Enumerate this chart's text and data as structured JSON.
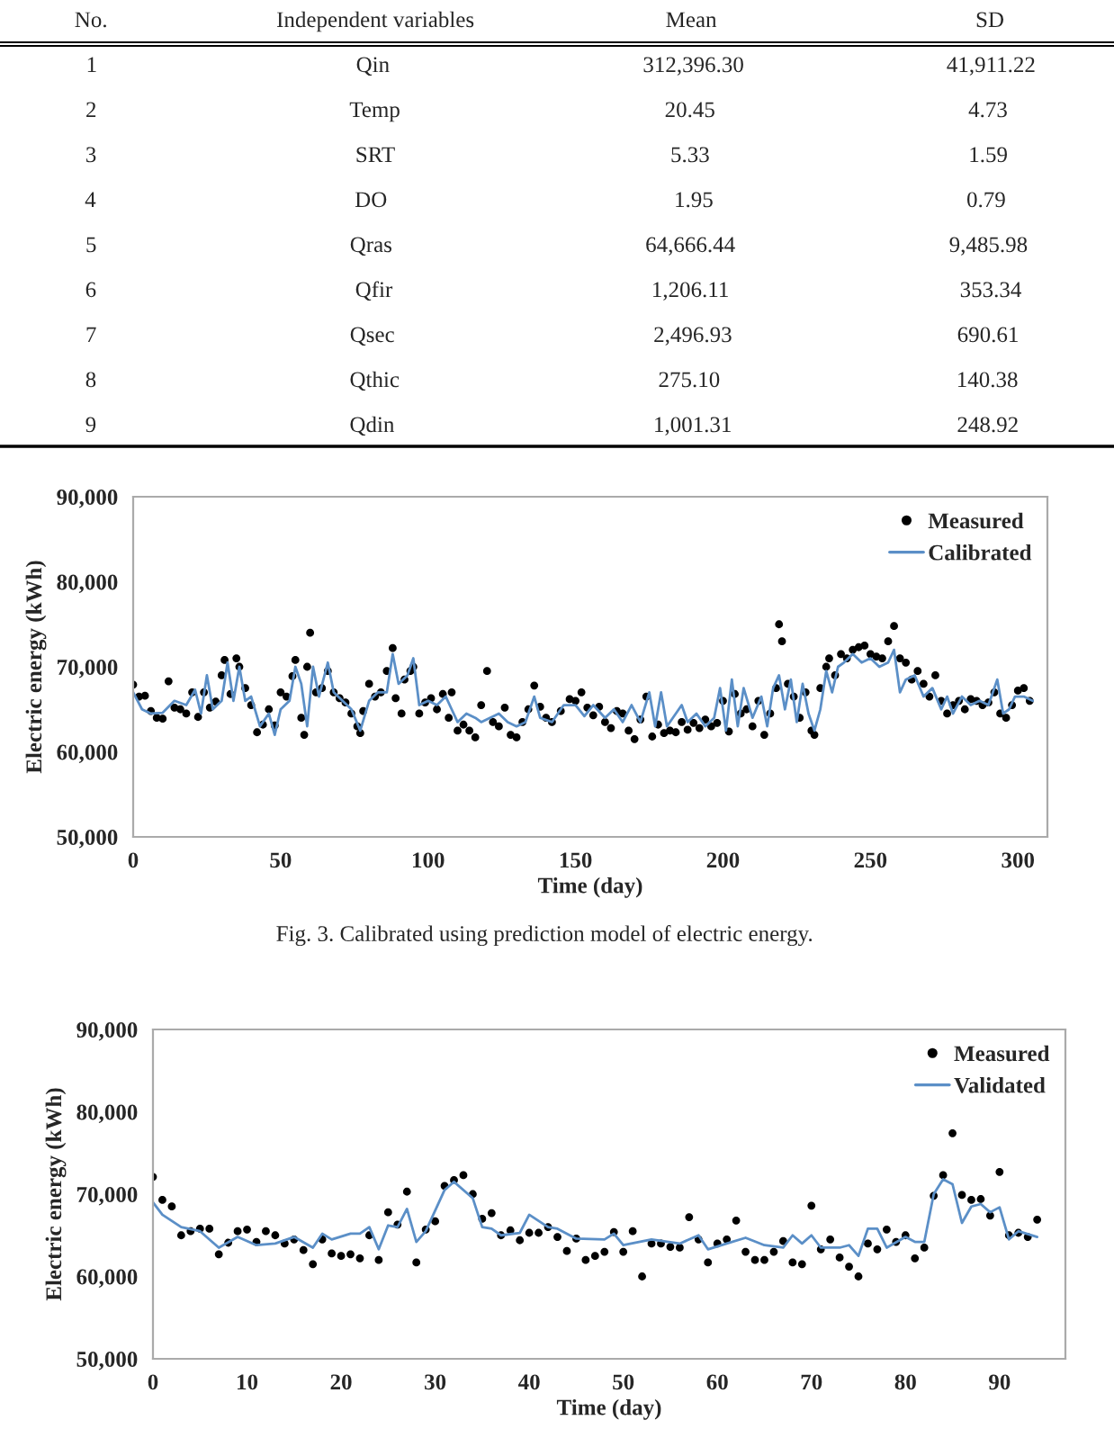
{
  "chart_data": [
    {
      "type": "other",
      "categories": [
        "No.",
        "Independent variables",
        "Mean",
        "SD"
      ],
      "cell_labels": [
        [
          "1",
          "Qin",
          "312,396.30",
          "41,911.22"
        ],
        [
          "2",
          "Temp",
          "20.45",
          "4.73"
        ],
        [
          "3",
          "SRT",
          "5.33",
          "1.59"
        ],
        [
          "4",
          "DO",
          "1.95",
          "0.79"
        ],
        [
          "5",
          "Qras",
          "64,666.44",
          "9,485.98"
        ],
        [
          "6",
          "Qfir",
          "1,206.11",
          "353.34"
        ],
        [
          "7",
          "Qsec",
          "2,496.93",
          "690.61"
        ],
        [
          "8",
          "Qthic",
          "275.10",
          "140.38"
        ],
        [
          "9",
          "Qdin",
          "1,001.31",
          "248.92"
        ]
      ]
    },
    {
      "type": "line",
      "xlabel": "Time (day)",
      "ylabel": "Electric energy (kWh)",
      "xlim": [
        0,
        310
      ],
      "ylim": [
        50000,
        90000
      ],
      "xticks": [
        0,
        50,
        100,
        150,
        200,
        250,
        300
      ],
      "yticks": [
        {
          "value": 50000,
          "label": "50,000"
        },
        {
          "value": 60000,
          "label": "60,000"
        },
        {
          "value": 70000,
          "label": "70,000"
        },
        {
          "value": 80000,
          "label": "80,000"
        },
        {
          "value": 90000,
          "label": "90,000"
        }
      ],
      "legend": "top right",
      "grid": false,
      "annotations": [
        "Fig. 3. Calibrated using prediction model of electric energy."
      ],
      "series": [
        {
          "name": "Measured",
          "type": "scatter",
          "marker": "circle",
          "color": "#000000",
          "x": [
            0,
            2,
            4,
            6,
            8,
            10,
            12,
            14,
            16,
            18,
            20,
            22,
            24,
            26,
            28,
            30,
            31,
            33,
            35,
            36,
            38,
            40,
            42,
            44,
            46,
            48,
            50,
            52,
            54,
            55,
            57,
            58,
            59,
            60,
            62,
            64,
            66,
            68,
            70,
            72,
            74,
            76,
            77,
            78,
            80,
            82,
            84,
            86,
            88,
            89,
            91,
            92,
            94,
            95,
            97,
            99,
            101,
            103,
            105,
            107,
            108,
            110,
            112,
            114,
            116,
            118,
            120,
            122,
            124,
            126,
            128,
            130,
            132,
            134,
            136,
            138,
            140,
            142,
            145,
            148,
            150,
            152,
            154,
            156,
            158,
            160,
            162,
            164,
            166,
            168,
            170,
            172,
            174,
            176,
            178,
            180,
            182,
            184,
            186,
            188,
            190,
            192,
            194,
            196,
            198,
            200,
            202,
            204,
            206,
            208,
            210,
            212,
            214,
            216,
            218,
            219,
            220,
            222,
            224,
            226,
            228,
            230,
            231,
            233,
            235,
            236,
            238,
            240,
            242,
            244,
            246,
            248,
            250,
            252,
            254,
            256,
            258,
            260,
            262,
            264,
            266,
            268,
            270,
            272,
            274,
            276,
            278,
            280,
            282,
            284,
            286,
            288,
            290,
            292,
            294,
            296,
            298,
            300,
            302,
            304
          ],
          "values": [
            67900,
            66500,
            66600,
            64800,
            64000,
            63900,
            68300,
            65200,
            65000,
            64500,
            67000,
            64100,
            67000,
            65200,
            65900,
            69000,
            70800,
            66800,
            71000,
            70000,
            67500,
            65500,
            62300,
            63200,
            65000,
            63100,
            67000,
            66500,
            68900,
            70800,
            64000,
            62000,
            70000,
            74000,
            67000,
            67500,
            69500,
            67000,
            66300,
            65800,
            64500,
            63000,
            62200,
            64800,
            68000,
            66500,
            67000,
            69500,
            72200,
            66300,
            64500,
            68500,
            69500,
            70000,
            64500,
            65800,
            66300,
            65000,
            66800,
            64000,
            67000,
            62500,
            63200,
            62500,
            61700,
            65500,
            69500,
            63500,
            63000,
            65200,
            62000,
            61700,
            63500,
            65000,
            67800,
            65300,
            64000,
            63500,
            64800,
            66200,
            66000,
            67000,
            65200,
            64300,
            65300,
            63500,
            62800,
            64800,
            64500,
            62500,
            61500,
            63800,
            66500,
            61800,
            63200,
            62200,
            62500,
            62300,
            63500,
            62600,
            63400,
            62800,
            63800,
            63000,
            63400,
            66000,
            62400,
            66800,
            64500,
            65000,
            63000,
            66000,
            62000,
            64500,
            67500,
            75000,
            73000,
            68000,
            66500,
            64000,
            67000,
            62500,
            62000,
            67500,
            70000,
            71000,
            69000,
            71500,
            71000,
            72000,
            72300,
            72500,
            71500,
            71200,
            71000,
            73000,
            74800,
            71000,
            70500,
            68500,
            69500,
            68000,
            66500,
            69000,
            66000,
            64500,
            65500,
            66000,
            65000,
            66200,
            66000,
            65500,
            65800,
            67000,
            64500,
            64000,
            65500,
            67200,
            67500,
            66000
          ]
        },
        {
          "name": "Calibrated",
          "type": "line",
          "color": "#5b8fc7",
          "x": [
            0,
            3,
            6,
            10,
            14,
            18,
            21,
            23,
            25,
            27,
            30,
            32,
            34,
            36,
            38,
            40,
            43,
            46,
            48,
            50,
            53,
            55,
            57,
            59,
            61,
            63,
            66,
            68,
            71,
            74,
            77,
            80,
            83,
            86,
            88,
            90,
            93,
            95,
            97,
            100,
            103,
            106,
            108,
            110,
            113,
            116,
            118,
            121,
            124,
            127,
            130,
            133,
            136,
            138,
            142,
            146,
            150,
            153,
            156,
            160,
            163,
            166,
            169,
            172,
            175,
            177,
            179,
            181,
            183,
            186,
            188,
            191,
            194,
            197,
            199,
            201,
            203,
            205,
            207,
            210,
            213,
            215,
            217,
            219,
            221,
            223,
            225,
            227,
            229,
            231,
            233,
            235,
            237,
            239,
            241,
            244,
            247,
            250,
            253,
            256,
            258,
            260,
            262,
            265,
            268,
            271,
            274,
            276,
            278,
            281,
            284,
            287,
            290,
            293,
            295,
            297,
            299,
            302,
            305
          ],
          "values": [
            67000,
            65000,
            64500,
            64600,
            66000,
            65500,
            67300,
            64500,
            69000,
            65000,
            66000,
            70500,
            66000,
            70000,
            66000,
            66500,
            63000,
            64500,
            62000,
            65000,
            66000,
            70000,
            68000,
            63000,
            70000,
            66500,
            70500,
            67000,
            66000,
            65000,
            62500,
            66000,
            67000,
            67000,
            71500,
            68000,
            69000,
            71000,
            65500,
            66000,
            65500,
            66500,
            65000,
            63500,
            64500,
            64000,
            63500,
            64000,
            64500,
            63500,
            63000,
            63500,
            66500,
            64000,
            63500,
            65500,
            65500,
            64200,
            65500,
            64000,
            65000,
            63500,
            65500,
            63500,
            67000,
            63000,
            67000,
            63000,
            64000,
            65500,
            63500,
            64500,
            63000,
            64000,
            67500,
            62500,
            68500,
            63000,
            67500,
            64000,
            66500,
            63000,
            67500,
            69000,
            65000,
            68500,
            63500,
            68000,
            64500,
            62500,
            65000,
            69500,
            67000,
            70000,
            70500,
            71500,
            70500,
            71000,
            70000,
            70500,
            72000,
            67000,
            68500,
            69000,
            66500,
            67500,
            65000,
            66500,
            64500,
            66500,
            65500,
            66000,
            65500,
            68500,
            64500,
            65000,
            66500,
            66500,
            66000
          ]
        }
      ]
    },
    {
      "type": "line",
      "xlabel": "Time (day)",
      "ylabel": "Electric energy (kWh)",
      "xlim": [
        0,
        97
      ],
      "ylim": [
        50000,
        90000
      ],
      "xticks": [
        0,
        10,
        20,
        30,
        40,
        50,
        60,
        70,
        80,
        90
      ],
      "yticks": [
        {
          "value": 50000,
          "label": "50,000"
        },
        {
          "value": 60000,
          "label": "60,000"
        },
        {
          "value": 70000,
          "label": "70,000"
        },
        {
          "value": 80000,
          "label": "80,000"
        },
        {
          "value": 90000,
          "label": "90,000"
        }
      ],
      "legend": "top right",
      "grid": false,
      "series": [
        {
          "name": "Measured",
          "type": "scatter",
          "marker": "circle",
          "color": "#000000",
          "x": [
            0,
            1,
            2,
            3,
            4,
            5,
            6,
            7,
            8,
            9,
            10,
            11,
            12,
            13,
            14,
            15,
            16,
            17,
            18,
            19,
            20,
            21,
            22,
            23,
            24,
            25,
            26,
            27,
            28,
            29,
            30,
            31,
            32,
            33,
            34,
            35,
            36,
            37,
            38,
            39,
            40,
            41,
            42,
            43,
            44,
            45,
            46,
            47,
            48,
            49,
            50,
            51,
            52,
            53,
            54,
            55,
            56,
            57,
            58,
            59,
            60,
            61,
            62,
            63,
            64,
            65,
            66,
            67,
            68,
            69,
            70,
            71,
            72,
            73,
            74,
            75,
            76,
            77,
            78,
            79,
            80,
            81,
            82,
            83,
            84,
            85,
            86,
            87,
            88,
            89,
            90,
            91,
            92,
            93,
            94
          ],
          "values": [
            72100,
            69300,
            68500,
            65000,
            65500,
            65800,
            65800,
            62700,
            64100,
            65500,
            65700,
            64200,
            65500,
            65000,
            64000,
            64500,
            63200,
            61500,
            64500,
            62800,
            62500,
            62700,
            62200,
            65000,
            62000,
            67800,
            66300,
            70300,
            61700,
            65700,
            66700,
            71000,
            71700,
            72300,
            70000,
            67000,
            67700,
            65000,
            65600,
            64400,
            65300,
            65300,
            66000,
            64800,
            63100,
            64600,
            62000,
            62500,
            63000,
            65400,
            63000,
            65500,
            60000,
            64000,
            64000,
            63600,
            63500,
            67200,
            64500,
            61700,
            64000,
            64500,
            66800,
            63000,
            62000,
            62000,
            63000,
            64300,
            61700,
            61500,
            68600,
            63300,
            64500,
            62300,
            61200,
            60000,
            64000,
            63300,
            65700,
            64200,
            65000,
            62200,
            63500,
            69800,
            72300,
            77400,
            69900,
            69300,
            69400,
            67400,
            72700,
            65000,
            65300,
            64800,
            66900
          ]
        },
        {
          "name": "Validated",
          "type": "line",
          "color": "#5b8fc7",
          "x": [
            0,
            1,
            3,
            5,
            7,
            9,
            11,
            13,
            15,
            17,
            18,
            19,
            21,
            22,
            23,
            24,
            25,
            26,
            27,
            28,
            29,
            31,
            32,
            34,
            35,
            36,
            37,
            39,
            40,
            42,
            43,
            45,
            48,
            49,
            50,
            53,
            56,
            58,
            59,
            61,
            63,
            65,
            67,
            68,
            69,
            70,
            71,
            73,
            74,
            75,
            76,
            77,
            78,
            80,
            81,
            82,
            83,
            84,
            85,
            86,
            87,
            88,
            89,
            90,
            91,
            92,
            94
          ],
          "values": [
            69000,
            67500,
            66000,
            65500,
            63500,
            64800,
            63800,
            64000,
            64800,
            63500,
            65200,
            64500,
            65200,
            65200,
            66000,
            63300,
            66200,
            66000,
            68200,
            64200,
            65500,
            70500,
            71500,
            69500,
            66000,
            65800,
            65000,
            65300,
            67500,
            66000,
            65800,
            64600,
            64500,
            65200,
            63800,
            64500,
            64000,
            65000,
            63300,
            64000,
            64700,
            63800,
            63500,
            65000,
            64000,
            65000,
            63500,
            63500,
            63800,
            62500,
            65800,
            65800,
            63500,
            64800,
            64200,
            64200,
            70000,
            71800,
            71200,
            66500,
            68500,
            68800,
            67800,
            68400,
            64500,
            65500,
            64800
          ]
        }
      ]
    }
  ]
}
